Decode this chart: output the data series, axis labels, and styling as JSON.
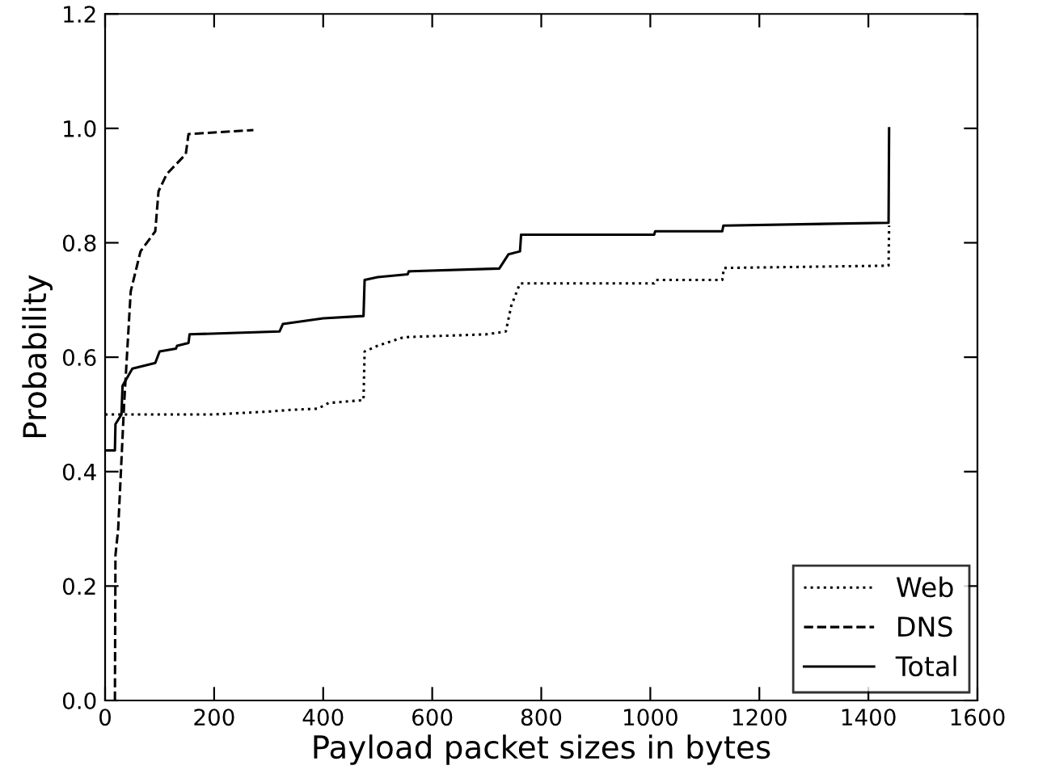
{
  "chart_data": {
    "type": "line",
    "xlabel": "Payload packet sizes in bytes",
    "ylabel": "Probability",
    "xlim": [
      0,
      1600
    ],
    "xticks": [
      0,
      200,
      400,
      600,
      800,
      1000,
      1200,
      1400,
      1600
    ],
    "ylim": [
      0,
      1.2
    ],
    "yticks": [
      {
        "value": 0,
        "label": "0.0"
      },
      {
        "value": 0.2,
        "label": "0.2"
      },
      {
        "value": 0.4,
        "label": "0.4"
      },
      {
        "value": 0.6,
        "label": "0.6"
      },
      {
        "value": 0.8,
        "label": "0.8"
      },
      {
        "value": 1.0,
        "label": "1.0"
      },
      {
        "value": 1.2,
        "label": "1.2"
      }
    ],
    "grid": false,
    "legend": "bottom right",
    "marker": "none",
    "series": [
      {
        "name": "Web",
        "color": "#000000",
        "line_style": "dotted",
        "x": [
          0,
          200,
          300,
          341,
          390,
          410,
          474,
          476,
          500,
          548,
          700,
          735,
          745,
          761,
          1007,
          1010,
          1132,
          1135,
          1437,
          1438
        ],
        "values": [
          0.5,
          0.5,
          0.505,
          0.508,
          0.51,
          0.52,
          0.525,
          0.61,
          0.62,
          0.635,
          0.64,
          0.645,
          0.69,
          0.729,
          0.729,
          0.735,
          0.735,
          0.756,
          0.76,
          0.83
        ]
      },
      {
        "name": "DNS",
        "color": "#000000",
        "line_style": "dashed",
        "x": [
          18,
          19,
          24,
          35,
          47,
          65,
          92,
          98,
          113,
          148,
          153,
          272
        ],
        "values": [
          0,
          0.254,
          0.3,
          0.52,
          0.715,
          0.785,
          0.82,
          0.89,
          0.92,
          0.955,
          0.99,
          0.997
        ]
      },
      {
        "name": "Total",
        "color": "#000000",
        "line_style": "solid",
        "x": [
          0,
          18,
          19,
          30,
          32,
          50,
          92,
          100,
          130,
          132,
          153,
          155,
          320,
          326,
          400,
          474,
          476,
          500,
          555,
          557,
          723,
          740,
          761,
          763,
          1007,
          1009,
          1132,
          1134,
          1437,
          1438
        ],
        "values": [
          0.437,
          0.437,
          0.483,
          0.5,
          0.55,
          0.58,
          0.59,
          0.61,
          0.615,
          0.62,
          0.625,
          0.64,
          0.645,
          0.658,
          0.668,
          0.672,
          0.735,
          0.74,
          0.745,
          0.75,
          0.755,
          0.78,
          0.785,
          0.814,
          0.814,
          0.82,
          0.82,
          0.83,
          0.835,
          1.0
        ]
      }
    ]
  }
}
